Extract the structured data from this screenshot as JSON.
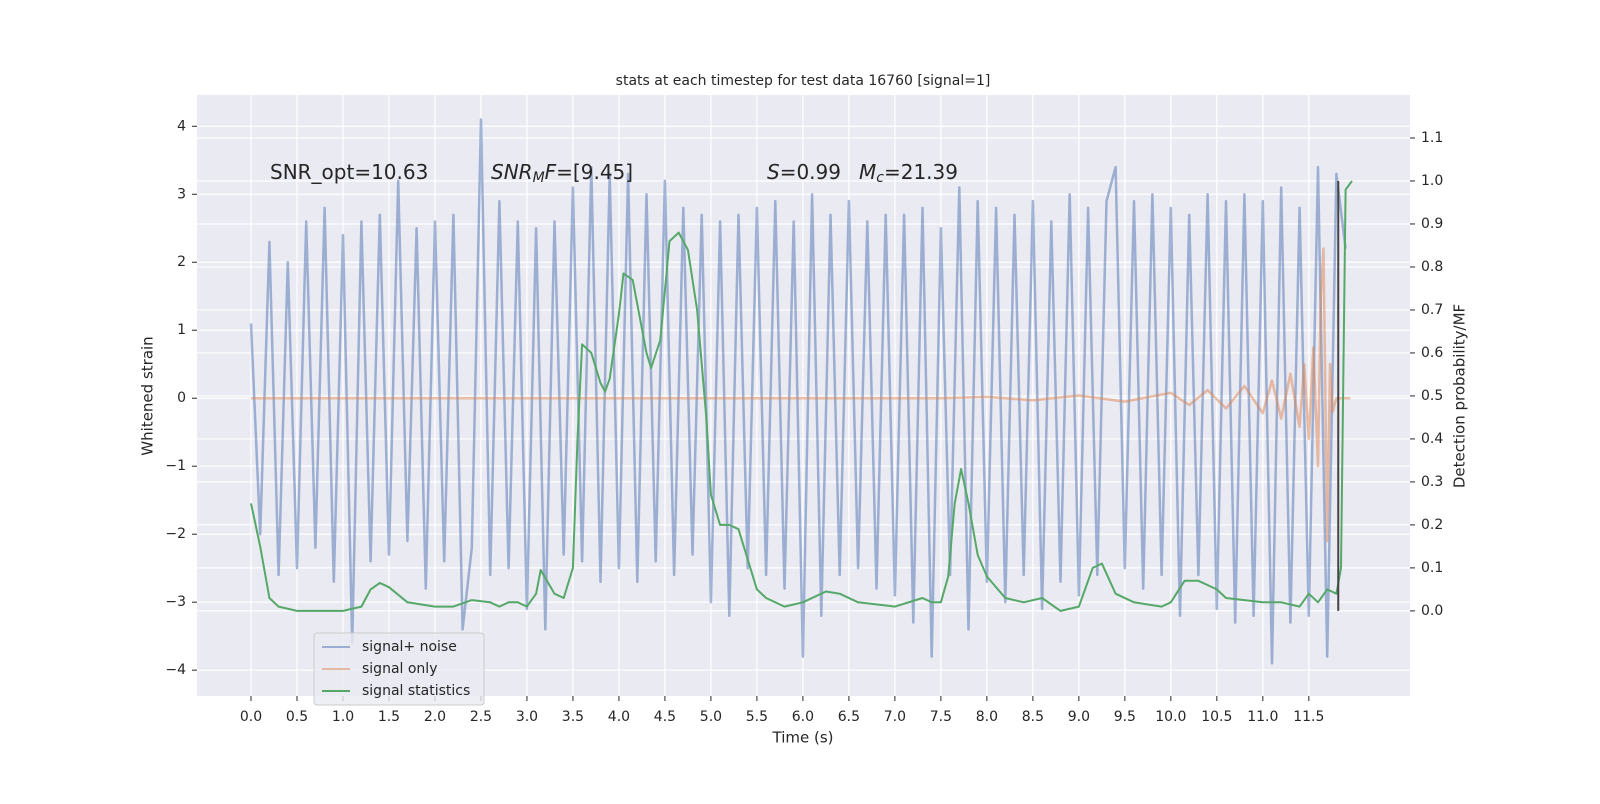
{
  "chart_data": {
    "type": "line",
    "title": "stats at each timestep for test data 16760 [signal=1]",
    "x_label": "Time (s)",
    "y_label": "Whitened strain",
    "y2_label": "Detection probability/MF",
    "xlim": [
      -0.587,
      12.6
    ],
    "ylim": [
      -4.38,
      4.46
    ],
    "y2lim": [
      -0.198,
      1.2
    ],
    "xticks": [
      {
        "value": 0,
        "label": "0.0"
      },
      0.5,
      {
        "value": 1,
        "label": "1.0"
      },
      1.5,
      {
        "value": 2,
        "label": "2.0"
      },
      2.5,
      {
        "value": 3,
        "label": "3.0"
      },
      3.5,
      {
        "value": 4,
        "label": "4.0"
      },
      4.5,
      {
        "value": 5,
        "label": "5.0"
      },
      5.5,
      {
        "value": 6,
        "label": "6.0"
      },
      6.5,
      {
        "value": 7,
        "label": "7.0"
      },
      7.5,
      {
        "value": 8,
        "label": "8.0"
      },
      8.5,
      {
        "value": 9,
        "label": "9.0"
      },
      9.5,
      {
        "value": 10,
        "label": "10.0"
      },
      10.5,
      {
        "value": 11,
        "label": "11.0"
      },
      11.5
    ],
    "yticks": [
      {
        "value": -4,
        "label": "−4"
      },
      {
        "value": -3,
        "label": "−3"
      },
      {
        "value": -2,
        "label": "−2"
      },
      {
        "value": -1,
        "label": "−1"
      },
      0,
      1,
      2,
      3,
      4
    ],
    "y2ticks": [
      {
        "value": 0,
        "label": "0.0"
      },
      0.1,
      0.2,
      0.3,
      0.4,
      0.5,
      0.6,
      0.7,
      0.8,
      0.9,
      {
        "value": 1,
        "label": "1.0"
      },
      1.1
    ],
    "grid": true,
    "legend": "lower left",
    "annotations": [
      [
        {
          "text": "SNR_opt=10.63",
          "italic": false,
          "sub": false
        }
      ],
      [
        {
          "text": "SNR",
          "italic": true,
          "sub": false
        },
        {
          "text": "M",
          "italic": true,
          "sub": true
        },
        {
          "text": "F",
          "italic": true,
          "sub": false
        },
        {
          "text": "=[9.45]",
          "italic": false,
          "sub": false
        }
      ],
      [
        {
          "text": "S",
          "italic": true,
          "sub": false
        },
        {
          "text": "=0.99",
          "italic": false,
          "sub": false
        }
      ],
      [
        {
          "text": "M",
          "italic": true,
          "sub": false
        },
        {
          "text": "c",
          "italic": true,
          "sub": true
        },
        {
          "text": "=21.39",
          "italic": false,
          "sub": false
        }
      ]
    ],
    "vline": {
      "x": 11.82,
      "y2": [
        0,
        1
      ],
      "color": "#444444"
    },
    "series": [
      {
        "name": "signal+ noise",
        "color": "#4c72b0",
        "opacity": 0.5,
        "x": [
          0.0,
          0.1,
          0.2,
          0.3,
          0.4,
          0.5,
          0.6,
          0.7,
          0.8,
          0.9,
          1.0,
          1.1,
          1.2,
          1.3,
          1.4,
          1.5,
          1.6,
          1.7,
          1.8,
          1.9,
          2.0,
          2.1,
          2.2,
          2.3,
          2.4,
          2.5,
          2.6,
          2.7,
          2.8,
          2.9,
          3.0,
          3.1,
          3.2,
          3.3,
          3.4,
          3.5,
          3.6,
          3.7,
          3.8,
          3.9,
          4.0,
          4.1,
          4.2,
          4.3,
          4.4,
          4.5,
          4.6,
          4.7,
          4.8,
          4.9,
          5.0,
          5.1,
          5.2,
          5.3,
          5.4,
          5.5,
          5.6,
          5.7,
          5.8,
          5.9,
          6.0,
          6.1,
          6.2,
          6.3,
          6.4,
          6.5,
          6.6,
          6.7,
          6.8,
          6.9,
          7.0,
          7.1,
          7.2,
          7.3,
          7.4,
          7.5,
          7.6,
          7.7,
          7.8,
          7.9,
          8.0,
          8.1,
          8.2,
          8.3,
          8.4,
          8.5,
          8.6,
          8.7,
          8.8,
          8.9,
          9.0,
          9.1,
          9.2,
          9.3,
          9.4,
          9.5,
          9.6,
          9.7,
          9.8,
          9.9,
          10.0,
          10.1,
          10.2,
          10.3,
          10.4,
          10.5,
          10.6,
          10.7,
          10.8,
          10.9,
          11.0,
          11.1,
          11.2,
          11.3,
          11.4,
          11.5,
          11.6,
          11.7,
          11.8,
          11.9
        ],
        "values": [
          1.1,
          -2.0,
          2.3,
          -2.6,
          2.0,
          -2.5,
          2.6,
          -2.2,
          2.8,
          -2.7,
          2.4,
          -3.6,
          2.6,
          -2.4,
          2.7,
          -2.3,
          3.2,
          -2.1,
          2.5,
          -2.8,
          2.6,
          -2.4,
          2.7,
          -3.4,
          -2.2,
          4.1,
          -2.6,
          2.9,
          -2.5,
          2.6,
          -3.1,
          2.5,
          -3.4,
          2.6,
          -2.3,
          3.1,
          -2.4,
          3.4,
          -2.7,
          3.3,
          -2.5,
          3.3,
          -2.7,
          3.0,
          -2.4,
          3.2,
          -2.6,
          2.8,
          -2.3,
          2.7,
          -3.0,
          2.6,
          -3.2,
          2.7,
          -2.5,
          2.8,
          -2.6,
          2.9,
          -2.8,
          2.6,
          -3.8,
          3.0,
          -3.2,
          2.7,
          -2.6,
          2.9,
          -2.5,
          2.6,
          -2.8,
          2.7,
          -2.9,
          2.7,
          -3.3,
          2.8,
          -3.8,
          2.5,
          -2.6,
          3.1,
          -3.4,
          2.9,
          -2.7,
          2.8,
          -3.0,
          2.7,
          -2.6,
          2.9,
          -3.1,
          2.6,
          -2.7,
          3.0,
          -2.9,
          2.8,
          -2.6,
          2.9,
          3.4,
          -2.5,
          2.9,
          -2.8,
          3.0,
          -2.6,
          2.8,
          -3.2,
          2.7,
          -2.6,
          3.0,
          -3.1,
          2.9,
          -3.3,
          3.0,
          -3.2,
          2.9,
          -3.9,
          3.1,
          -3.3,
          2.8,
          -3.2,
          3.4,
          -3.8,
          3.3,
          2.2
        ]
      },
      {
        "name": "signal only",
        "color": "#dd8452",
        "opacity": 0.5,
        "x": [
          0.0,
          7.5,
          8.0,
          8.5,
          9.0,
          9.5,
          10.0,
          10.2,
          10.4,
          10.6,
          10.8,
          11.0,
          11.1,
          11.2,
          11.3,
          11.4,
          11.45,
          11.5,
          11.55,
          11.6,
          11.63,
          11.66,
          11.7,
          11.73,
          11.76,
          11.8,
          11.95
        ],
        "values": [
          0,
          0,
          0.02,
          -0.03,
          0.04,
          -0.05,
          0.08,
          -0.1,
          0.12,
          -0.15,
          0.18,
          -0.22,
          0.26,
          -0.3,
          0.36,
          -0.42,
          0.5,
          -0.6,
          0.75,
          -1.0,
          1.5,
          2.2,
          -2.1,
          0.5,
          -0.2,
          0,
          0
        ]
      },
      {
        "name": "signal statistics",
        "color": "#55a868",
        "opacity": 1,
        "axis": "y2",
        "x": [
          0.0,
          0.1,
          0.2,
          0.3,
          0.5,
          0.7,
          1.0,
          1.2,
          1.3,
          1.4,
          1.5,
          1.7,
          2.0,
          2.2,
          2.4,
          2.6,
          2.7,
          2.8,
          2.9,
          3.0,
          3.1,
          3.15,
          3.3,
          3.4,
          3.5,
          3.55,
          3.6,
          3.7,
          3.8,
          3.85,
          3.9,
          4.0,
          4.05,
          4.15,
          4.3,
          4.35,
          4.45,
          4.55,
          4.65,
          4.75,
          4.85,
          4.95,
          5.0,
          5.1,
          5.2,
          5.3,
          5.4,
          5.5,
          5.6,
          5.8,
          6.0,
          6.25,
          6.4,
          6.6,
          7.0,
          7.3,
          7.4,
          7.5,
          7.58,
          7.65,
          7.72,
          7.8,
          7.9,
          8.0,
          8.2,
          8.4,
          8.6,
          8.8,
          9.0,
          9.15,
          9.25,
          9.4,
          9.6,
          9.9,
          10.0,
          10.15,
          10.3,
          10.5,
          10.6,
          11.0,
          11.2,
          11.4,
          11.5,
          11.6,
          11.7,
          11.8,
          11.85,
          11.9,
          11.97
        ],
        "values": [
          0.25,
          0.15,
          0.03,
          0.01,
          0.0,
          0.0,
          0.0,
          0.01,
          0.05,
          0.065,
          0.055,
          0.02,
          0.01,
          0.01,
          0.025,
          0.02,
          0.01,
          0.02,
          0.02,
          0.01,
          0.04,
          0.095,
          0.04,
          0.03,
          0.1,
          0.4,
          0.62,
          0.6,
          0.53,
          0.51,
          0.54,
          0.69,
          0.785,
          0.77,
          0.6,
          0.565,
          0.63,
          0.86,
          0.88,
          0.84,
          0.7,
          0.45,
          0.27,
          0.2,
          0.2,
          0.19,
          0.12,
          0.05,
          0.03,
          0.01,
          0.02,
          0.045,
          0.04,
          0.02,
          0.01,
          0.03,
          0.02,
          0.02,
          0.08,
          0.25,
          0.33,
          0.25,
          0.13,
          0.08,
          0.03,
          0.02,
          0.03,
          0.0,
          0.01,
          0.1,
          0.11,
          0.04,
          0.02,
          0.01,
          0.02,
          0.07,
          0.07,
          0.05,
          0.03,
          0.02,
          0.02,
          0.01,
          0.04,
          0.02,
          0.05,
          0.04,
          0.1,
          0.98,
          1.0
        ]
      }
    ]
  }
}
